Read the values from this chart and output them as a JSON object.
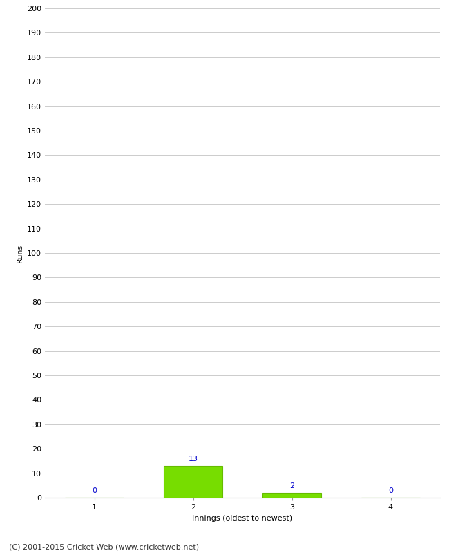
{
  "innings": [
    1,
    2,
    3,
    4
  ],
  "runs": [
    0,
    13,
    2,
    0
  ],
  "bar_color": "#77dd00",
  "bar_edge_color": "#66bb00",
  "label_color": "#0000cc",
  "xlabel": "Innings (oldest to newest)",
  "ylabel": "Runs",
  "ylim": [
    0,
    200
  ],
  "ytick_step": 10,
  "background_color": "#ffffff",
  "grid_color": "#cccccc",
  "footer": "(C) 2001-2015 Cricket Web (www.cricketweb.net)",
  "label_fontsize": 8,
  "axis_label_fontsize": 8,
  "tick_fontsize": 8,
  "footer_fontsize": 8
}
